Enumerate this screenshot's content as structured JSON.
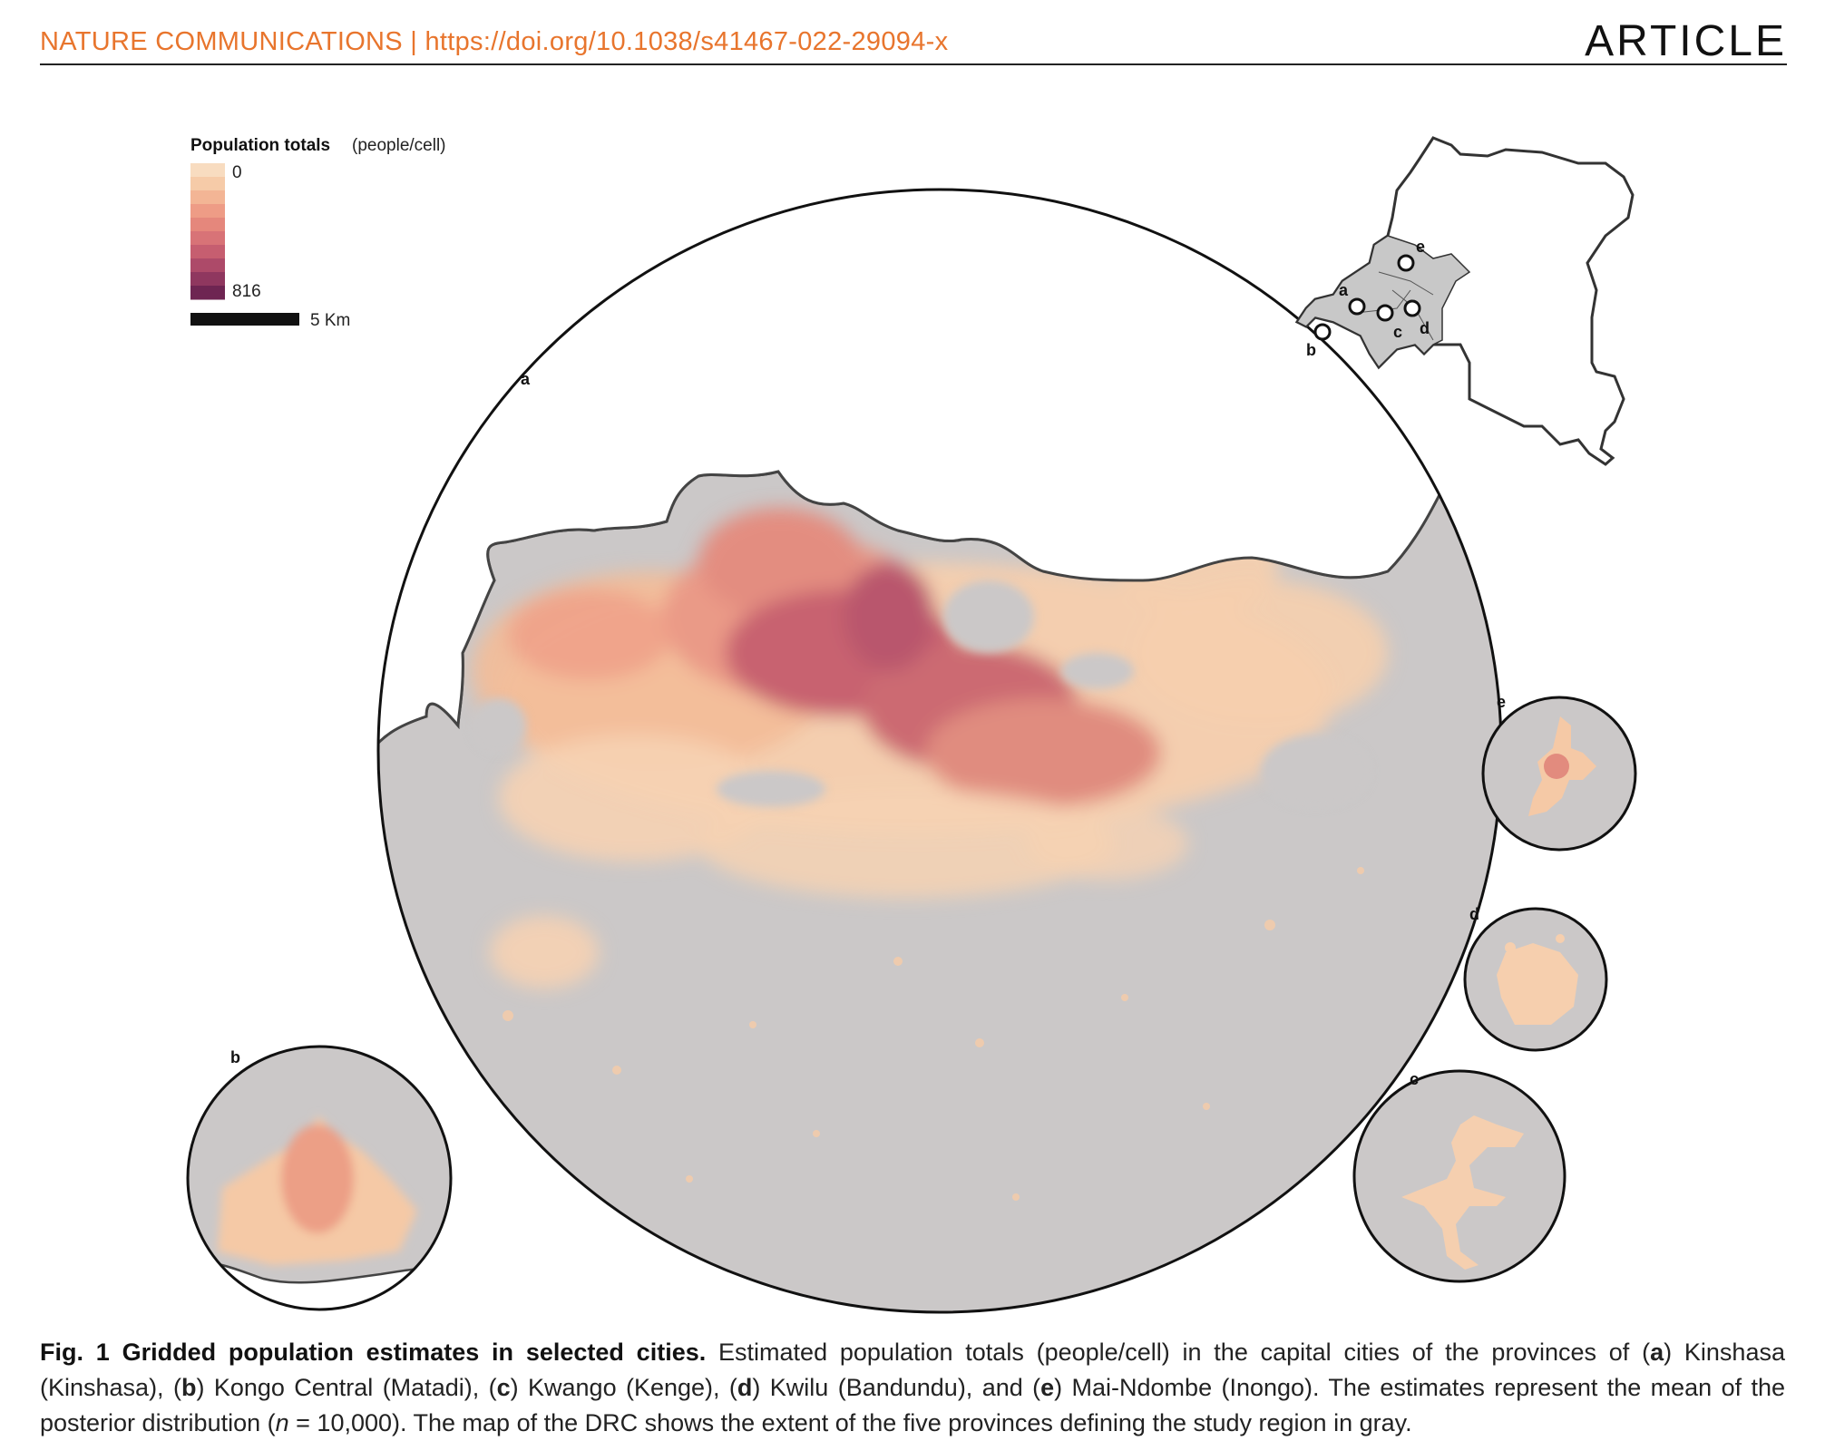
{
  "header": {
    "journal": "NATURE COMMUNICATIONS | https://doi.org/10.1038/s41467-022-29094-x",
    "section": "ARTICLE"
  },
  "legend": {
    "title": "Population totals",
    "unit": "(people/cell)",
    "min": "0",
    "max": "816",
    "scalebar": "5 Km",
    "colors": [
      "#f8dcc0",
      "#f6cba8",
      "#f3b595",
      "#ee9c86",
      "#e5877c",
      "#d87377",
      "#c65e70",
      "#ad4a69",
      "#8f375f",
      "#6e2552"
    ]
  },
  "panels": {
    "a": "a",
    "b": "b",
    "c": "c",
    "d": "d",
    "e": "e"
  },
  "inset_map": {
    "labels": [
      "a",
      "b",
      "c",
      "d",
      "e"
    ],
    "region_fill": "#c8c8c8"
  },
  "caption": {
    "title": "Fig. 1 Gridded population estimates in selected cities.",
    "body_1": " Estimated population totals (people/cell) in the capital cities of the provinces of (",
    "a": "a",
    "body_2": ") Kinshasa (Kinshasa), (",
    "b": "b",
    "body_3": ") Kongo Central (Matadi), (",
    "c": "c",
    "body_4": ") Kwango (Kenge), (",
    "d": "d",
    "body_5": ") Kwilu (Bandundu), and (",
    "e": "e",
    "body_6": ") Mai-Ndombe (Inongo). The estimates represent the mean of the posterior distribution (",
    "n": "n",
    "body_7": " = 10,000). The map of the DRC shows the extent of the five provinces defining the study region in gray."
  }
}
